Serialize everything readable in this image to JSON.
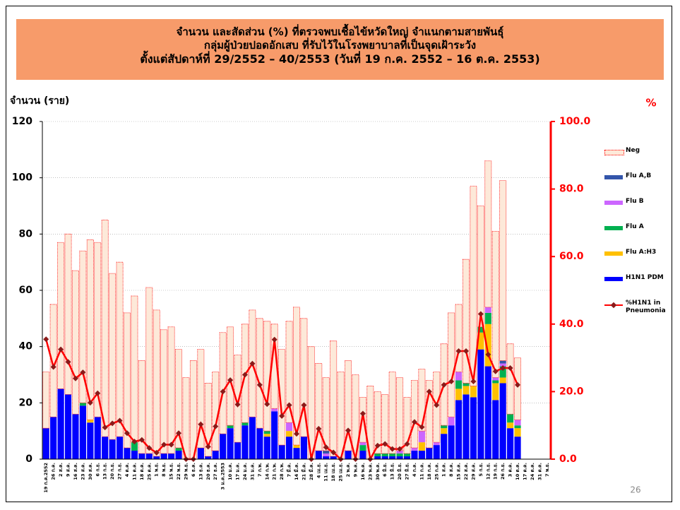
{
  "chart_data": {
    "type": "bar",
    "title": [
      "จำนวน และสัดส่วน (%) ที่ตรวจพบเชื้อไข้หวัดใหญ่ จำแนกตามสายพันธุ์",
      "กลุ่มผู้ป่วยปอดอักเสบ ที่รับไว้ในโรงพยาบาลที่เป็นจุดเฝ้าระวัง",
      "ตั้งแต่สัปดาห์ที่ 29/2552 – 40/2553  (วันที่ 19 ก.ค. 2552 – 16 ต.ค. 2553)"
    ],
    "y_label": "จำนวน (ราย)",
    "y2_label": "%",
    "page_number": "26",
    "stacked": true,
    "grid": true,
    "legend": "right",
    "categories": [
      "19 ก.ค.2552",
      "26 ก.ค.",
      "2 ส.ค.",
      "9 ส.ค.",
      "16 ส.ค.",
      "23 ส.ค.",
      "30 ส.ค.",
      "6 ก.ย.",
      "13 ก.ย.",
      "20 ก.ย.",
      "27 ก.ย.",
      "4 ต.ค.",
      "11 ต.ค.",
      "18 ต.ค.",
      "25 ต.ค.",
      "1 พ.ย.",
      "8 พ.ย.",
      "15 พ.ย.",
      "22 พ.ย.",
      "29 พ.ย.",
      "6 ธ.ค.",
      "13 ธ.ค.",
      "20 ธ.ค.",
      "27 ธ.ค.",
      "3 ม.ค.2553",
      "10 ม.ค.",
      "17 ม.ค.",
      "24 ม.ค.",
      "31 ม.ค.",
      "7 ก.พ.",
      "14 ก.พ.",
      "21 ก.พ.",
      "28 ก.พ.",
      "7 มี.ค.",
      "14 มี.ค.",
      "21 มี.ค.",
      "28 มี.ค.",
      "4 เม.ย.",
      "11 เม.ย.",
      "18 เม.ย.",
      "25 เม.ย.",
      "2 พ.ค.",
      "9 พ.ค.",
      "16 พ.ค.",
      "23 พ.ค.",
      "30 พ.ค.",
      "6 มิ.ย.",
      "13 มิ.ย.",
      "20 มิ.ย.",
      "27 มิ.ย.",
      "4 ก.ค.",
      "11 ก.ค.",
      "18 ก.ค.",
      "25 ก.ค.",
      "1 ส.ค.",
      "8 ส.ค.",
      "15 ส.ค.",
      "22 ส.ค.",
      "29 ส.ค.",
      "5 ก.ย.",
      "12 ก.ย.",
      "19 ก.ย.",
      "26 ก.ย.",
      "3 ต.ค.",
      "10 ต.ค.",
      "17 ต.ค.",
      "24 ต.ค.",
      "31 ต.ค.",
      "7 พ.ย."
    ],
    "series": [
      {
        "name": "H1N1 PDM",
        "color": "#0000ff",
        "values": [
          11,
          15,
          25,
          23,
          16,
          19,
          13,
          15,
          8,
          7,
          8,
          4,
          3,
          2,
          2,
          1,
          2,
          2,
          3,
          0,
          0,
          4,
          1,
          3,
          9,
          11,
          6,
          12,
          15,
          11,
          8,
          17,
          5,
          8,
          4,
          8,
          0,
          3,
          1,
          1,
          0,
          3,
          0,
          3,
          0,
          1,
          1,
          1,
          1,
          1,
          3,
          3,
          4,
          5,
          9,
          12,
          21,
          23,
          22,
          39,
          33,
          21,
          27,
          11,
          8,
          null,
          null,
          null,
          null
        ]
      },
      {
        "name": "Flu A:H3",
        "color": "#ffc000",
        "values": [
          0,
          0,
          0,
          0,
          0,
          0,
          1,
          0,
          0,
          0,
          0,
          0,
          0,
          0,
          0,
          0,
          0,
          0,
          0,
          0,
          0,
          0,
          0,
          0,
          0,
          0,
          0,
          0,
          0,
          0,
          1,
          0,
          0,
          2,
          1,
          0,
          0,
          0,
          0,
          0,
          0,
          0,
          0,
          0,
          0,
          0,
          0,
          0,
          0,
          0,
          0,
          3,
          0,
          0,
          2,
          0,
          4,
          3,
          4,
          6,
          15,
          6,
          2,
          2,
          3,
          null,
          null,
          null,
          null
        ]
      },
      {
        "name": "Flu A",
        "color": "#00b050",
        "values": [
          0,
          0,
          0,
          0,
          0,
          1,
          0,
          0,
          0,
          0,
          0,
          0,
          3,
          0,
          0,
          0,
          0,
          0,
          1,
          0,
          0,
          0,
          0,
          0,
          0,
          1,
          0,
          1,
          0,
          0,
          1,
          0,
          0,
          0,
          0,
          0,
          0,
          0,
          0,
          0,
          0,
          0,
          0,
          2,
          0,
          1,
          1,
          1,
          1,
          1,
          0,
          0,
          0,
          0,
          1,
          0,
          3,
          1,
          0,
          2,
          4,
          1,
          4,
          3,
          1,
          null,
          null,
          null,
          null
        ]
      },
      {
        "name": "Flu B",
        "color": "#cc66ff",
        "values": [
          0,
          0,
          0,
          0,
          0,
          0,
          0,
          0,
          0,
          0,
          0,
          0,
          0,
          0,
          0,
          0,
          0,
          0,
          0,
          0,
          0,
          0,
          0,
          0,
          0,
          0,
          0,
          0,
          0,
          0,
          0,
          1,
          0,
          3,
          0,
          0,
          0,
          0,
          1,
          0,
          0,
          0,
          0,
          1,
          0,
          0,
          0,
          0,
          1,
          0,
          1,
          4,
          0,
          1,
          0,
          3,
          3,
          0,
          0,
          0,
          2,
          1,
          1,
          0,
          2,
          null,
          null,
          null,
          null
        ]
      },
      {
        "name": "Flu A,B",
        "color": "#3355aa",
        "values": [
          0,
          0,
          0,
          0,
          0,
          0,
          0,
          0,
          0,
          0,
          0,
          0,
          0,
          0,
          0,
          0,
          0,
          0,
          0,
          0,
          0,
          0,
          0,
          0,
          0,
          0,
          0,
          0,
          0,
          0,
          0,
          0,
          0,
          0,
          0,
          0,
          0,
          0,
          1,
          0,
          0,
          0,
          0,
          0,
          0,
          0,
          0,
          0,
          0,
          0,
          0,
          0,
          0,
          0,
          0,
          0,
          0,
          0,
          0,
          0,
          0,
          0,
          1,
          0,
          0,
          null,
          null,
          null,
          null
        ]
      },
      {
        "name": "Neg",
        "color": "#fde9d9",
        "border": "#ff0000",
        "values": [
          20,
          40,
          52,
          57,
          51,
          54,
          64,
          62,
          77,
          59,
          62,
          48,
          52,
          33,
          59,
          52,
          44,
          45,
          35,
          29,
          35,
          35,
          26,
          28,
          36,
          35,
          31,
          35,
          38,
          39,
          39,
          30,
          34,
          36,
          49,
          42,
          40,
          31,
          26,
          41,
          31,
          32,
          30,
          16,
          26,
          22,
          21,
          29,
          26,
          20,
          24,
          22,
          24,
          25,
          29,
          37,
          24,
          44,
          71,
          43,
          52,
          52,
          64,
          25,
          22,
          null,
          null,
          null,
          null
        ]
      },
      {
        "name": "%H1N1 in Pneumonia",
        "type": "line",
        "axis": "y2",
        "color": "#ff0000",
        "marker_color": "#8b1a1a",
        "values": [
          35.5,
          27.3,
          32.5,
          28.8,
          23.9,
          25.7,
          16.7,
          19.5,
          9.4,
          10.6,
          11.4,
          7.7,
          5.2,
          5.7,
          3.3,
          1.9,
          4.3,
          4.3,
          7.7,
          0,
          0,
          10.3,
          3.7,
          9.7,
          20.0,
          23.4,
          16.2,
          25.0,
          28.3,
          22.0,
          16.3,
          35.4,
          12.8,
          16.0,
          7.5,
          16.0,
          0,
          9.0,
          3.5,
          2.0,
          0,
          8.5,
          0,
          13.5,
          0,
          4.0,
          4.5,
          3.0,
          3.0,
          4.5,
          11.0,
          9.5,
          20.0,
          16.0,
          22.0,
          23.0,
          32.0,
          32.0,
          23.0,
          43.0,
          31.0,
          26.0,
          27.0,
          27.0,
          22.0,
          null,
          null,
          null,
          null
        ]
      }
    ],
    "ylim": [
      0,
      120
    ],
    "yticks": [
      0,
      20,
      40,
      60,
      80,
      100,
      120
    ],
    "y2lim": [
      0,
      100
    ],
    "y2ticks": [
      {
        "value": 0,
        "label": "0.0"
      },
      {
        "value": 20,
        "label": "20.0"
      },
      {
        "value": 40,
        "label": "40.0"
      },
      {
        "value": 60,
        "label": "60.0"
      },
      {
        "value": 80,
        "label": "80.0"
      },
      {
        "value": 100,
        "label": "100.0"
      }
    ]
  }
}
